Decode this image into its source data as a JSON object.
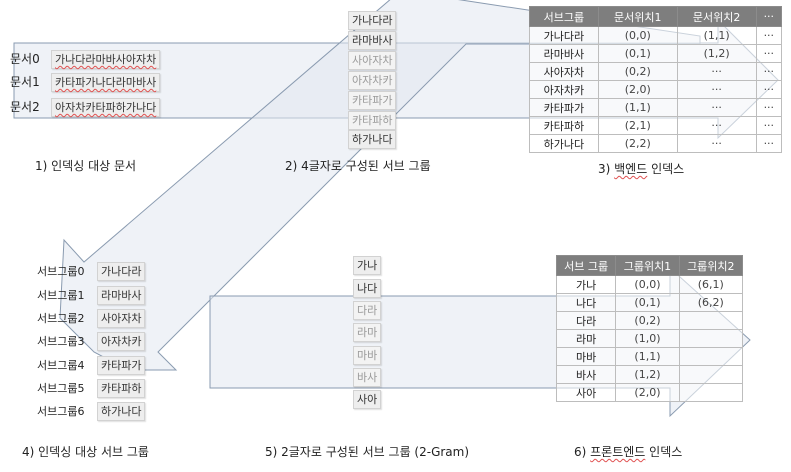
{
  "doc_labels": [
    "문서0",
    "문서1",
    "문서2"
  ],
  "docs": [
    "가나다라마바사아자차",
    "카타파가나다라마바사",
    "아자차카타파하가나다"
  ],
  "subgroups4": [
    "가나다라",
    "라마바사",
    "사아자차",
    "아자차카",
    "카타파가",
    "카타파하",
    "하가나다"
  ],
  "backend_index": {
    "headers": [
      "서브그룹",
      "문서위치1",
      "문서위치2",
      "···"
    ],
    "rows": [
      [
        "가나다라",
        "(0,0)",
        "(1,1)",
        "···"
      ],
      [
        "라마바사",
        "(0,1)",
        "(1,2)",
        "···"
      ],
      [
        "사아자차",
        "(0,2)",
        "···",
        "···"
      ],
      [
        "아자차카",
        "(2,0)",
        "···",
        "···"
      ],
      [
        "카타파가",
        "(1,1)",
        "···",
        "···"
      ],
      [
        "카타파하",
        "(2,1)",
        "···",
        "···"
      ],
      [
        "하가나다",
        "(2,2)",
        "···",
        "···"
      ]
    ]
  },
  "subgroup_labels": [
    "서브그룹0",
    "서브그룹1",
    "서브그룹2",
    "서브그룹3",
    "서브그룹4",
    "서브그룹5",
    "서브그룹6"
  ],
  "subgroups_indexing": [
    "가나다라",
    "라마바사",
    "사아자차",
    "아자차카",
    "카타파가",
    "카타파하",
    "하가나다"
  ],
  "bigrams": [
    "가나",
    "나다",
    "다라",
    "라마",
    "마바",
    "바사",
    "사아"
  ],
  "frontend_index": {
    "headers": [
      "서브 그룹",
      "그룹위치1",
      "그룹위치2"
    ],
    "rows": [
      [
        "가나",
        "(0,0)",
        "(6,1)"
      ],
      [
        "나다",
        "(0,1)",
        "(6,2)"
      ],
      [
        "다라",
        "(0,2)",
        ""
      ],
      [
        "라마",
        "(1,0)",
        ""
      ],
      [
        "마바",
        "(1,1)",
        ""
      ],
      [
        "바사",
        "(1,2)",
        ""
      ],
      [
        "사아",
        "(2,0)",
        ""
      ]
    ]
  },
  "captions": {
    "c1": "1) 인덱싱 대상 문서",
    "c2": "2) 4글자로 구성된 서브 그룹",
    "c3_num": "3) ",
    "c3_main": "백엔드",
    "c3_tail": " 인덱스",
    "c4": "4) 인덱싱 대상 서브 그룹",
    "c5": "5) 2글자로 구성된 서브 그룹 (2-Gram)",
    "c6_num": "6) ",
    "c6_main": "프론트엔드",
    "c6_tail": " 인덱스"
  }
}
